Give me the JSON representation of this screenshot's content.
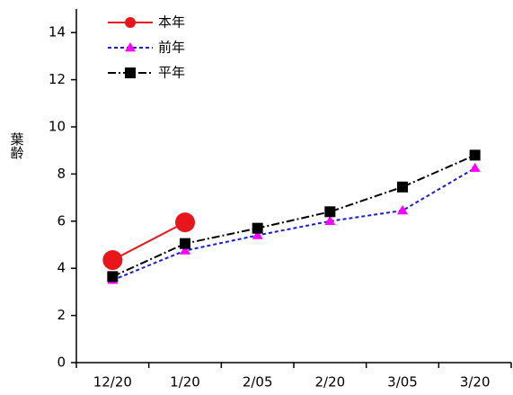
{
  "chart_data": {
    "type": "line",
    "y_label": "葉齢",
    "categories": [
      "12/20",
      "1/20",
      "2/05",
      "2/20",
      "3/05",
      "3/20"
    ],
    "series": [
      {
        "name": "本年",
        "color": "#e8161b",
        "marker_color": "#e8161b",
        "marker": "circle",
        "dash": "solid",
        "values": [
          4.35,
          5.95,
          null,
          null,
          null,
          null
        ]
      },
      {
        "name": "前年",
        "color": "#1a1adc",
        "marker_color": "#ff00ff",
        "marker": "triangle",
        "dash": "dashed",
        "values": [
          3.5,
          4.75,
          5.4,
          6.0,
          6.45,
          8.25
        ]
      },
      {
        "name": "平年",
        "color": "#000000",
        "marker_color": "#000000",
        "marker": "square",
        "dash": "dashdot",
        "values": [
          3.65,
          5.05,
          5.7,
          6.4,
          7.45,
          8.8
        ]
      }
    ],
    "ylim": [
      0,
      15
    ],
    "yticks": [
      0,
      2,
      4,
      6,
      8,
      10,
      12,
      14
    ],
    "legend": "upper-left"
  }
}
